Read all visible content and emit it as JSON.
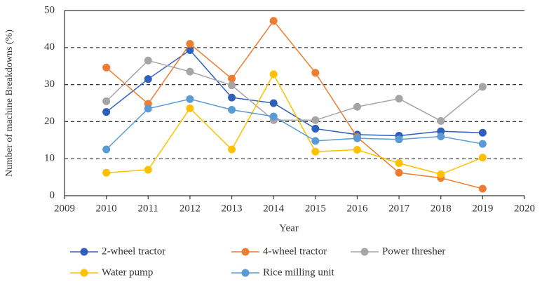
{
  "chart_data": {
    "type": "line",
    "x_label": "Year",
    "y_label": "Number of machine Breakdowns (%)",
    "x": [
      2010,
      2011,
      2012,
      2013,
      2014,
      2015,
      2016,
      2017,
      2018,
      2019
    ],
    "series": [
      {
        "name": "2-wheel tractor",
        "color": "#2f5fbd",
        "values": [
          22.6,
          31.5,
          39.3,
          26.5,
          25.0,
          18.1,
          16.5,
          16.2,
          17.4,
          17.0
        ]
      },
      {
        "name": "4-wheel tractor",
        "color": "#ed7d31",
        "values": [
          34.6,
          24.8,
          41.0,
          31.6,
          47.2,
          33.2,
          15.8,
          6.2,
          4.8,
          1.9
        ]
      },
      {
        "name": "Power thresher",
        "color": "#a5a5a5",
        "values": [
          25.5,
          36.5,
          33.5,
          29.8,
          20.4,
          20.4,
          24.0,
          26.2,
          20.2,
          29.4
        ]
      },
      {
        "name": "Water pump",
        "color": "#ffc000",
        "values": [
          6.2,
          7.0,
          23.6,
          12.5,
          32.8,
          11.9,
          12.4,
          8.8,
          5.8,
          10.3
        ]
      },
      {
        "name": "Rice milling unit",
        "color": "#5b9bd5",
        "values": [
          12.5,
          23.5,
          26.1,
          23.2,
          21.4,
          14.8,
          15.5,
          15.2,
          16.0,
          14.0
        ]
      }
    ],
    "xlim": [
      2009,
      2020
    ],
    "xticks": [
      2009,
      2010,
      2011,
      2012,
      2013,
      2014,
      2015,
      2016,
      2017,
      2018,
      2019,
      2020
    ],
    "ylim": [
      0,
      50
    ],
    "yticks": [
      0,
      10,
      20,
      30,
      40,
      50
    ],
    "grid": true
  }
}
